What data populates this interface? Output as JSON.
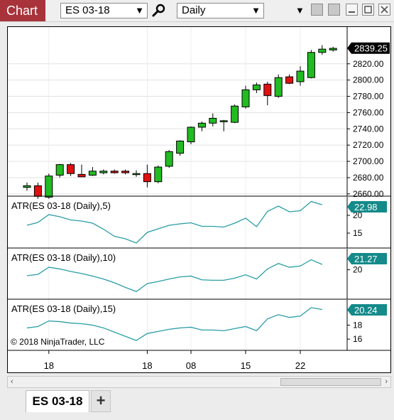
{
  "toolbar": {
    "title": "Chart",
    "instrument": "ES 03-18",
    "interval": "Daily",
    "search_icon": "search-icon",
    "dropdown_icon": "chevron-down-icon"
  },
  "colors": {
    "title_tab": "#a8333a",
    "up_candle": "#22bb22",
    "down_candle": "#e01010",
    "atr_line": "#2a9ea6",
    "atr_badge": "#148a8a",
    "price_badge": "#000000"
  },
  "chart_data": [
    {
      "type": "candlestick",
      "title": "",
      "ylim": [
        2645,
        2860
      ],
      "yticks": [
        "2660.00",
        "2680.00",
        "2700.00",
        "2720.00",
        "2740.00",
        "2760.00",
        "2780.00",
        "2800.00",
        "2820.00"
      ],
      "last_value": "2839.25",
      "grid": true,
      "candles": [
        {
          "o": 2668,
          "h": 2674,
          "l": 2664,
          "c": 2670
        },
        {
          "o": 2670,
          "h": 2674,
          "l": 2654,
          "c": 2657
        },
        {
          "o": 2656,
          "h": 2685,
          "l": 2654,
          "c": 2682
        },
        {
          "o": 2683,
          "h": 2697,
          "l": 2680,
          "c": 2696
        },
        {
          "o": 2696,
          "h": 2698,
          "l": 2682,
          "c": 2685
        },
        {
          "o": 2684,
          "h": 2696,
          "l": 2682,
          "c": 2681
        },
        {
          "o": 2683,
          "h": 2693,
          "l": 2682,
          "c": 2688
        },
        {
          "o": 2686,
          "h": 2690,
          "l": 2684,
          "c": 2688
        },
        {
          "o": 2688,
          "h": 2690,
          "l": 2685,
          "c": 2686
        },
        {
          "o": 2688,
          "h": 2690,
          "l": 2684,
          "c": 2686
        },
        {
          "o": 2685,
          "h": 2689,
          "l": 2681,
          "c": 2685
        },
        {
          "o": 2685,
          "h": 2696,
          "l": 2668,
          "c": 2675
        },
        {
          "o": 2675,
          "h": 2695,
          "l": 2673,
          "c": 2693
        },
        {
          "o": 2694,
          "h": 2714,
          "l": 2692,
          "c": 2712
        },
        {
          "o": 2710,
          "h": 2726,
          "l": 2707,
          "c": 2725
        },
        {
          "o": 2724,
          "h": 2743,
          "l": 2721,
          "c": 2742
        },
        {
          "o": 2742,
          "h": 2749,
          "l": 2737,
          "c": 2747
        },
        {
          "o": 2747,
          "h": 2759,
          "l": 2743,
          "c": 2753
        },
        {
          "o": 2749,
          "h": 2751,
          "l": 2737,
          "c": 2750
        },
        {
          "o": 2748,
          "h": 2770,
          "l": 2747,
          "c": 2768
        },
        {
          "o": 2767,
          "h": 2793,
          "l": 2765,
          "c": 2788
        },
        {
          "o": 2788,
          "h": 2797,
          "l": 2784,
          "c": 2794
        },
        {
          "o": 2795,
          "h": 2798,
          "l": 2769,
          "c": 2781
        },
        {
          "o": 2780,
          "h": 2807,
          "l": 2778,
          "c": 2803
        },
        {
          "o": 2804,
          "h": 2807,
          "l": 2795,
          "c": 2796
        },
        {
          "o": 2798,
          "h": 2817,
          "l": 2793,
          "c": 2811
        },
        {
          "o": 2803,
          "h": 2837,
          "l": 2802,
          "c": 2834
        },
        {
          "o": 2834,
          "h": 2843,
          "l": 2831,
          "c": 2838
        },
        {
          "o": 2837,
          "h": 2841,
          "l": 2835,
          "c": 2839
        }
      ]
    },
    {
      "type": "line",
      "title": "ATR(ES 03-18 (Daily),5)",
      "ylim": [
        12,
        24
      ],
      "yticks": [
        "15",
        "20"
      ],
      "last_value": "22.98",
      "values": [
        17.2,
        18.0,
        20.2,
        19.6,
        18.7,
        18.4,
        17.8,
        16.1,
        14.1,
        13.4,
        12.2,
        15.2,
        16.2,
        17.2,
        17.6,
        17.9,
        16.9,
        16.9,
        16.7,
        17.8,
        19.2,
        16.8,
        21.1,
        22.6,
        21.0,
        21.3,
        23.9,
        22.98
      ]
    },
    {
      "type": "line",
      "title": "ATR(ES 03-18 (Daily),10)",
      "ylim": [
        14,
        24
      ],
      "yticks": [
        "20"
      ],
      "last_value": "21.27",
      "values": [
        18.6,
        18.9,
        20.6,
        20.2,
        19.6,
        19.1,
        18.5,
        17.8,
        16.9,
        15.8,
        14.8,
        16.7,
        17.2,
        17.8,
        18.3,
        18.5,
        17.6,
        17.5,
        17.5,
        18.0,
        18.8,
        17.8,
        20.2,
        21.5,
        20.6,
        20.9,
        22.4,
        21.27
      ]
    },
    {
      "type": "line",
      "title": "ATR(ES 03-18 (Daily),15)",
      "ylim": [
        15,
        21
      ],
      "yticks": [
        "16",
        "18"
      ],
      "last_value": "20.24",
      "values": [
        17.6,
        17.8,
        18.6,
        18.5,
        18.3,
        18.2,
        18.0,
        17.6,
        17.0,
        16.4,
        15.8,
        16.8,
        17.1,
        17.4,
        17.6,
        17.7,
        17.3,
        17.3,
        17.2,
        17.5,
        17.8,
        17.2,
        18.9,
        19.5,
        19.1,
        19.3,
        20.5,
        20.24
      ]
    }
  ],
  "x_axis": {
    "labels": [
      {
        "text": "18",
        "index": 2
      },
      {
        "text": "18",
        "index": 11
      },
      {
        "text": "08",
        "index": 15
      },
      {
        "text": "15",
        "index": 20
      },
      {
        "text": "22",
        "index": 25
      }
    ]
  },
  "copyright": "© 2018 NinjaTrader, LLC",
  "tabs": [
    {
      "label": "ES 03-18"
    }
  ],
  "add_tab_label": "+",
  "scrollbar": {
    "left_arrow": "‹",
    "right_arrow": "›"
  }
}
